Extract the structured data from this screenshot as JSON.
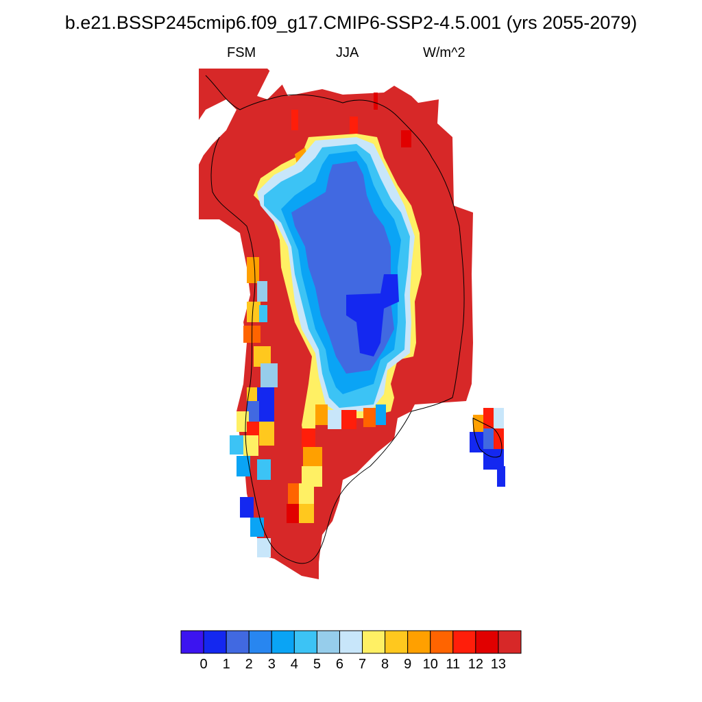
{
  "title": "b.e21.BSSP245cmip6.f09_g17.CMIP6-SSP2-4.5.001 (yrs 2055-2079)",
  "subtitle_left": "FSM",
  "subtitle_center": "JJA",
  "subtitle_right": "W/m^2",
  "colorbar": {
    "colors": [
      "#3c14f0",
      "#1428f0",
      "#4169e1",
      "#2886f0",
      "#0aa4f5",
      "#3cc3f5",
      "#96cdeb",
      "#c8e6fa",
      "#fff064",
      "#ffc81e",
      "#ffa000",
      "#ff6400",
      "#ff1e0a",
      "#e10000",
      "#d72828"
    ],
    "tick_labels": [
      "0",
      "1",
      "2",
      "3",
      "4",
      "5",
      "6",
      "7",
      "8",
      "9",
      "10",
      "11",
      "12",
      "13"
    ]
  }
}
